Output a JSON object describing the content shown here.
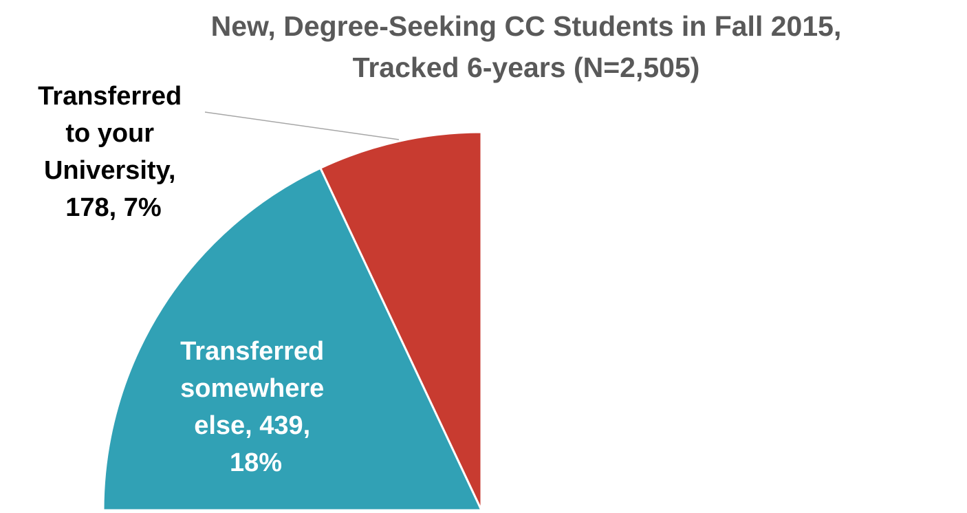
{
  "chart_data": {
    "type": "pie",
    "title": [
      "New, Degree-Seeking CC Students in Fall 2015,",
      "Tracked 6-years (N=2,505)"
    ],
    "categories": [
      "Transferred to your University",
      "Transferred somewhere else"
    ],
    "values": [
      7,
      18
    ],
    "data_labels": [
      "Transferred to your University, 178, 7%",
      "Transferred somewhere else, 439, 18%"
    ],
    "series_colors": [
      "#c83b30",
      "#31a1b5"
    ]
  }
}
